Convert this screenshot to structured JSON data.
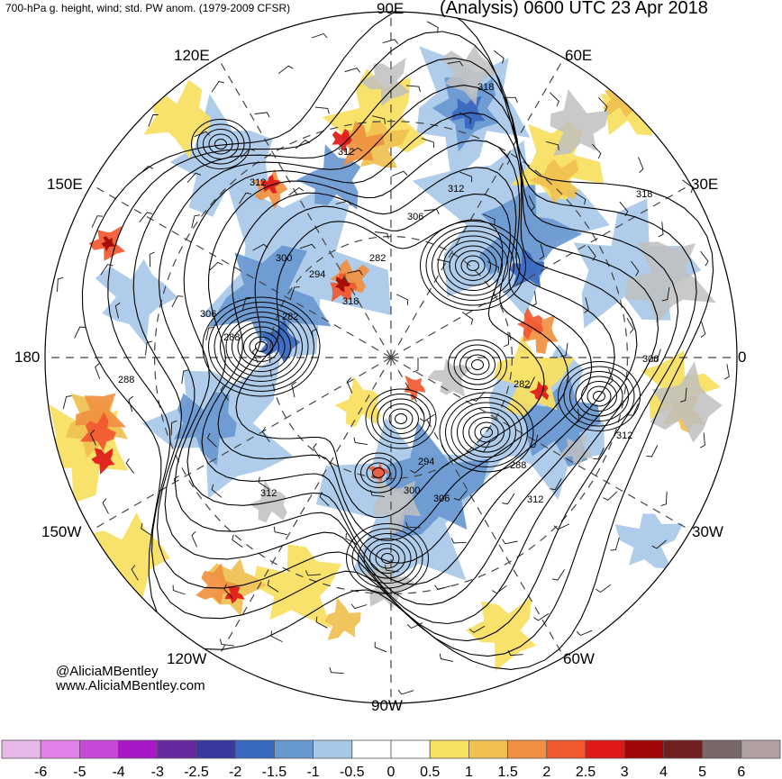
{
  "header": {
    "left": "700-hPa g. height, wind; std. PW anom. (1979-2009 CFSR)",
    "right": "(Analysis) 0600 UTC 23 Apr 2018"
  },
  "credits": {
    "handle": "@AliciaMBentley",
    "website": "www.AliciaMBentley.com"
  },
  "longitude_labels": {
    "e90": "90E",
    "e60": "60E",
    "e30": "30E",
    "zero": "0",
    "w30": "30W",
    "w60": "60W",
    "w90": "90W",
    "w120": "120W",
    "w150": "150W",
    "lon180": "180",
    "e150": "150E",
    "e120": "120E"
  },
  "contour_labels": [
    "318",
    "312",
    "312",
    "312",
    "306",
    "300",
    "294",
    "288",
    "282",
    "282",
    "306",
    "288",
    "318",
    "306",
    "282",
    "312",
    "288",
    "294",
    "300",
    "306",
    "312",
    "312",
    "318"
  ],
  "colorbar": {
    "ticks": [
      "-6",
      "-5",
      "-4",
      "-3",
      "-2.5",
      "-2",
      "-1.5",
      "-1",
      "-0.5",
      "0",
      "0.5",
      "1",
      "1.5",
      "2",
      "2.5",
      "3",
      "4",
      "5",
      "6"
    ],
    "colors": [
      "#e8b8e8",
      "#e080e8",
      "#c848d8",
      "#a818c8",
      "#6828a0",
      "#3838a0",
      "#3868c0",
      "#6898d0",
      "#a8c8e8",
      "#ffffff",
      "#ffffff",
      "#f8e060",
      "#f0c050",
      "#f09040",
      "#f05830",
      "#e01818",
      "#a00808",
      "#702020",
      "#786868",
      "#b0a0a0"
    ]
  },
  "colors": {
    "land": "#c0c0c0",
    "ocean": "#ffffff",
    "contour": "#000000"
  }
}
